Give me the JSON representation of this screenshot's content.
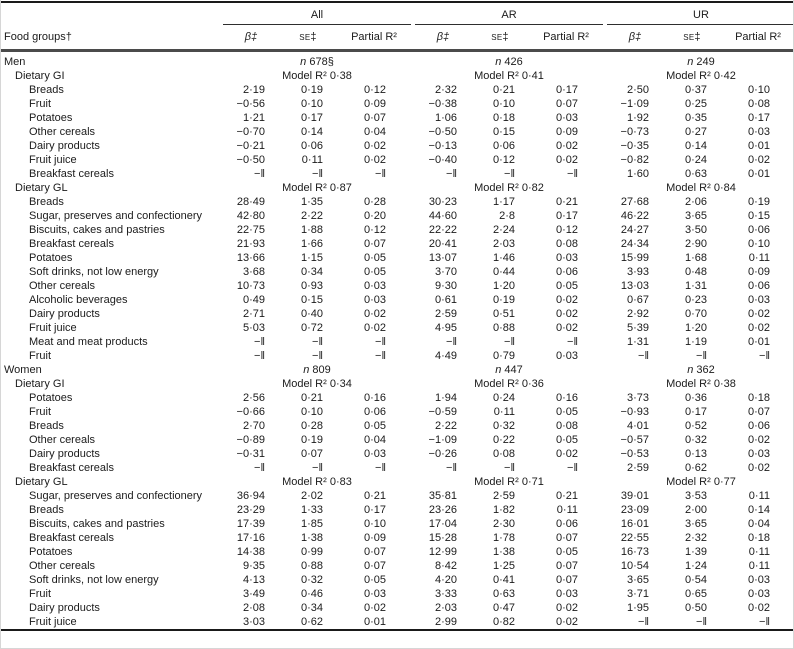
{
  "table": {
    "food_groups_label": "Food groups†",
    "n_prefix": "n",
    "model_prefix": "Model R² ",
    "missing_marker": "−‖",
    "groups": [
      "All",
      "AR",
      "UR"
    ],
    "col_labels": {
      "beta": "β‡",
      "se": "se‡",
      "partial": "Partial R²"
    },
    "rows": [
      {
        "label": "Men",
        "indent": 0,
        "type": "n",
        "vals": [
          "678§",
          "426",
          "249"
        ]
      },
      {
        "label": "Dietary GI",
        "indent": 1,
        "type": "model",
        "vals": [
          "0·38",
          "0·41",
          "0·42"
        ]
      },
      {
        "label": "Breads",
        "indent": 2,
        "type": "data",
        "vals": [
          [
            "2·19",
            "0·19",
            "0·12"
          ],
          [
            "2·32",
            "0·21",
            "0·17"
          ],
          [
            "2·50",
            "0·37",
            "0·10"
          ]
        ]
      },
      {
        "label": "Fruit",
        "indent": 2,
        "type": "data",
        "vals": [
          [
            "−0·56",
            "0·10",
            "0·09"
          ],
          [
            "−0·38",
            "0·10",
            "0·07"
          ],
          [
            "−1·09",
            "0·25",
            "0·08"
          ]
        ]
      },
      {
        "label": "Potatoes",
        "indent": 2,
        "type": "data",
        "vals": [
          [
            "1·21",
            "0·17",
            "0·07"
          ],
          [
            "1·06",
            "0·18",
            "0·03"
          ],
          [
            "1·92",
            "0·35",
            "0·17"
          ]
        ]
      },
      {
        "label": "Other cereals",
        "indent": 2,
        "type": "data",
        "vals": [
          [
            "−0·70",
            "0·14",
            "0·04"
          ],
          [
            "−0·50",
            "0·15",
            "0·09"
          ],
          [
            "−0·73",
            "0·27",
            "0·03"
          ]
        ]
      },
      {
        "label": "Dairy products",
        "indent": 2,
        "type": "data",
        "vals": [
          [
            "−0·21",
            "0·06",
            "0·02"
          ],
          [
            "−0·13",
            "0·06",
            "0·02"
          ],
          [
            "−0·35",
            "0·14",
            "0·01"
          ]
        ]
      },
      {
        "label": "Fruit juice",
        "indent": 2,
        "type": "data",
        "vals": [
          [
            "−0·50",
            "0·11",
            "0·02"
          ],
          [
            "−0·40",
            "0·12",
            "0·02"
          ],
          [
            "−0·82",
            "0·24",
            "0·02"
          ]
        ]
      },
      {
        "label": "Breakfast cereals",
        "indent": 2,
        "type": "data",
        "vals": [
          [
            "−‖",
            "−‖",
            "−‖"
          ],
          [
            "−‖",
            "−‖",
            "−‖"
          ],
          [
            "1·60",
            "0·63",
            "0·01"
          ]
        ]
      },
      {
        "label": "Dietary GL",
        "indent": 1,
        "type": "model",
        "vals": [
          "0·87",
          "0·82",
          "0·84"
        ]
      },
      {
        "label": "Breads",
        "indent": 2,
        "type": "data",
        "vals": [
          [
            "28·49",
            "1·35",
            "0·28"
          ],
          [
            "30·23",
            "1·17",
            "0·21"
          ],
          [
            "27·68",
            "2·06",
            "0·19"
          ]
        ]
      },
      {
        "label": "Sugar, preserves and confectionery",
        "indent": 2,
        "type": "data",
        "vals": [
          [
            "42·80",
            "2·22",
            "0·20"
          ],
          [
            "44·60",
            "2·8",
            "0·17"
          ],
          [
            "46·22",
            "3·65",
            "0·15"
          ]
        ]
      },
      {
        "label": "Biscuits, cakes and pastries",
        "indent": 2,
        "type": "data",
        "vals": [
          [
            "22·75",
            "1·88",
            "0·12"
          ],
          [
            "22·22",
            "2·24",
            "0·12"
          ],
          [
            "24·27",
            "3·50",
            "0·06"
          ]
        ]
      },
      {
        "label": "Breakfast cereals",
        "indent": 2,
        "type": "data",
        "vals": [
          [
            "21·93",
            "1·66",
            "0·07"
          ],
          [
            "20·41",
            "2·03",
            "0·08"
          ],
          [
            "24·34",
            "2·90",
            "0·10"
          ]
        ]
      },
      {
        "label": "Potatoes",
        "indent": 2,
        "type": "data",
        "vals": [
          [
            "13·66",
            "1·15",
            "0·05"
          ],
          [
            "13·07",
            "1·46",
            "0·03"
          ],
          [
            "15·99",
            "1·68",
            "0·11"
          ]
        ]
      },
      {
        "label": "Soft drinks, not low energy",
        "indent": 2,
        "type": "data",
        "vals": [
          [
            "3·68",
            "0·34",
            "0·05"
          ],
          [
            "3·70",
            "0·44",
            "0·06"
          ],
          [
            "3·93",
            "0·48",
            "0·09"
          ]
        ]
      },
      {
        "label": "Other cereals",
        "indent": 2,
        "type": "data",
        "vals": [
          [
            "10·73",
            "0·93",
            "0·03"
          ],
          [
            "9·30",
            "1·20",
            "0·05"
          ],
          [
            "13·03",
            "1·31",
            "0·06"
          ]
        ]
      },
      {
        "label": "Alcoholic beverages",
        "indent": 2,
        "type": "data",
        "vals": [
          [
            "0·49",
            "0·15",
            "0·03"
          ],
          [
            "0·61",
            "0·19",
            "0·02"
          ],
          [
            "0·67",
            "0·23",
            "0·03"
          ]
        ]
      },
      {
        "label": "Dairy products",
        "indent": 2,
        "type": "data",
        "vals": [
          [
            "2·71",
            "0·40",
            "0·02"
          ],
          [
            "2·59",
            "0·51",
            "0·02"
          ],
          [
            "2·92",
            "0·70",
            "0·02"
          ]
        ]
      },
      {
        "label": "Fruit juice",
        "indent": 2,
        "type": "data",
        "vals": [
          [
            "5·03",
            "0·72",
            "0·02"
          ],
          [
            "4·95",
            "0·88",
            "0·02"
          ],
          [
            "5·39",
            "1·20",
            "0·02"
          ]
        ]
      },
      {
        "label": "Meat and meat products",
        "indent": 2,
        "type": "data",
        "vals": [
          [
            "−‖",
            "−‖",
            "−‖"
          ],
          [
            "−‖",
            "−‖",
            "−‖"
          ],
          [
            "1·31",
            "1·19",
            "0·01"
          ]
        ]
      },
      {
        "label": "Fruit",
        "indent": 2,
        "type": "data",
        "vals": [
          [
            "−‖",
            "−‖",
            "−‖"
          ],
          [
            "4·49",
            "0·79",
            "0·03"
          ],
          [
            "−‖",
            "−‖",
            "−‖"
          ]
        ]
      },
      {
        "label": "Women",
        "indent": 0,
        "type": "n",
        "vals": [
          "809",
          "447",
          "362"
        ]
      },
      {
        "label": "Dietary GI",
        "indent": 1,
        "type": "model",
        "vals": [
          "0·34",
          "0·36",
          "0·38"
        ]
      },
      {
        "label": "Potatoes",
        "indent": 2,
        "type": "data",
        "vals": [
          [
            "2·56",
            "0·21",
            "0·16"
          ],
          [
            "1·94",
            "0·24",
            "0·16"
          ],
          [
            "3·73",
            "0·36",
            "0·18"
          ]
        ]
      },
      {
        "label": "Fruit",
        "indent": 2,
        "type": "data",
        "vals": [
          [
            "−0·66",
            "0·10",
            "0·06"
          ],
          [
            "−0·59",
            "0·11",
            "0·05"
          ],
          [
            "−0·93",
            "0·17",
            "0·07"
          ]
        ]
      },
      {
        "label": "Breads",
        "indent": 2,
        "type": "data",
        "vals": [
          [
            "2·70",
            "0·28",
            "0·05"
          ],
          [
            "2·22",
            "0·32",
            "0·08"
          ],
          [
            "4·01",
            "0·52",
            "0·06"
          ]
        ]
      },
      {
        "label": "Other cereals",
        "indent": 2,
        "type": "data",
        "vals": [
          [
            "−0·89",
            "0·19",
            "0·04"
          ],
          [
            "−1·09",
            "0·22",
            "0·05"
          ],
          [
            "−0·57",
            "0·32",
            "0·02"
          ]
        ]
      },
      {
        "label": "Dairy products",
        "indent": 2,
        "type": "data",
        "vals": [
          [
            "−0·31",
            "0·07",
            "0·03"
          ],
          [
            "−0·26",
            "0·08",
            "0·02"
          ],
          [
            "−0·53",
            "0·13",
            "0·03"
          ]
        ]
      },
      {
        "label": "Breakfast cereals",
        "indent": 2,
        "type": "data",
        "vals": [
          [
            "−‖",
            "−‖",
            "−‖"
          ],
          [
            "−‖",
            "−‖",
            "−‖"
          ],
          [
            "2·59",
            "0·62",
            "0·02"
          ]
        ]
      },
      {
        "label": "Dietary GL",
        "indent": 1,
        "type": "model",
        "vals": [
          "0·83",
          "0·71",
          "0·77"
        ]
      },
      {
        "label": "Sugar, preserves and confectionery",
        "indent": 2,
        "type": "data",
        "vals": [
          [
            "36·94",
            "2·02",
            "0·21"
          ],
          [
            "35·81",
            "2·59",
            "0·21"
          ],
          [
            "39·01",
            "3·53",
            "0·11"
          ]
        ]
      },
      {
        "label": "Breads",
        "indent": 2,
        "type": "data",
        "vals": [
          [
            "23·29",
            "1·33",
            "0·17"
          ],
          [
            "23·26",
            "1·82",
            "0·11"
          ],
          [
            "23·09",
            "2·00",
            "0·14"
          ]
        ]
      },
      {
        "label": "Biscuits, cakes and pastries",
        "indent": 2,
        "type": "data",
        "vals": [
          [
            "17·39",
            "1·85",
            "0·10"
          ],
          [
            "17·04",
            "2·30",
            "0·06"
          ],
          [
            "16·01",
            "3·65",
            "0·04"
          ]
        ]
      },
      {
        "label": "Breakfast cereals",
        "indent": 2,
        "type": "data",
        "vals": [
          [
            "17·16",
            "1·38",
            "0·09"
          ],
          [
            "15·28",
            "1·78",
            "0·07"
          ],
          [
            "22·55",
            "2·32",
            "0·18"
          ]
        ]
      },
      {
        "label": "Potatoes",
        "indent": 2,
        "type": "data",
        "vals": [
          [
            "14·38",
            "0·99",
            "0·07"
          ],
          [
            "12·99",
            "1·38",
            "0·05"
          ],
          [
            "16·73",
            "1·39",
            "0·11"
          ]
        ]
      },
      {
        "label": "Other cereals",
        "indent": 2,
        "type": "data",
        "vals": [
          [
            "9·35",
            "0·88",
            "0·07"
          ],
          [
            "8·42",
            "1·25",
            "0·07"
          ],
          [
            "10·54",
            "1·24",
            "0·11"
          ]
        ]
      },
      {
        "label": "Soft drinks, not low energy",
        "indent": 2,
        "type": "data",
        "vals": [
          [
            "4·13",
            "0·32",
            "0·05"
          ],
          [
            "4·20",
            "0·41",
            "0·07"
          ],
          [
            "3·65",
            "0·54",
            "0·03"
          ]
        ]
      },
      {
        "label": "Fruit",
        "indent": 2,
        "type": "data",
        "vals": [
          [
            "3·49",
            "0·46",
            "0·03"
          ],
          [
            "3·33",
            "0·63",
            "0·03"
          ],
          [
            "3·71",
            "0·65",
            "0·03"
          ]
        ]
      },
      {
        "label": "Dairy products",
        "indent": 2,
        "type": "data",
        "vals": [
          [
            "2·08",
            "0·34",
            "0·02"
          ],
          [
            "2·03",
            "0·47",
            "0·02"
          ],
          [
            "1·95",
            "0·50",
            "0·02"
          ]
        ]
      },
      {
        "label": "Fruit juice",
        "indent": 2,
        "type": "data",
        "vals": [
          [
            "3·03",
            "0·62",
            "0·01"
          ],
          [
            "2·99",
            "0·82",
            "0·02"
          ],
          [
            "−‖",
            "−‖",
            "−‖"
          ]
        ]
      }
    ]
  }
}
